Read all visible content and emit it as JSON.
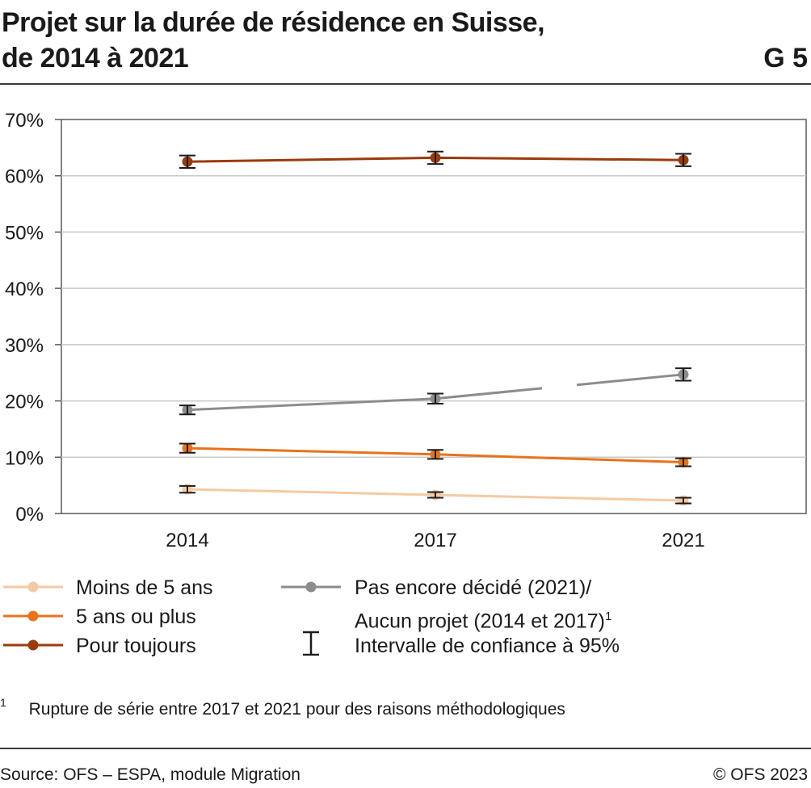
{
  "header": {
    "title_line1": "Projet sur la durée de résidence en Suisse,",
    "title_line2": "de 2014 à 2021",
    "code": "G 5"
  },
  "chart_data": {
    "type": "line",
    "title": "Projet sur la durée de résidence en Suisse, de 2014 à 2021",
    "categories": [
      "2014",
      "2017",
      "2021"
    ],
    "ylim": [
      0,
      70
    ],
    "yticks": [
      "0%",
      "10%",
      "20%",
      "30%",
      "40%",
      "50%",
      "60%",
      "70%"
    ],
    "grid": true,
    "legend_position": "bottom",
    "series": [
      {
        "name": "Moins de 5 ans",
        "color": "#f6c9a2",
        "values": [
          4.3,
          3.3,
          2.3
        ],
        "ci": [
          0.6,
          0.5,
          0.5
        ]
      },
      {
        "name": "5 ans ou plus",
        "color": "#e8731c",
        "values": [
          11.6,
          10.5,
          9.1
        ],
        "ci": [
          0.8,
          0.8,
          0.7
        ]
      },
      {
        "name": "Pour toujours",
        "color": "#9b3a0b",
        "values": [
          62.5,
          63.2,
          62.8
        ],
        "ci": [
          1.1,
          1.1,
          1.1
        ]
      },
      {
        "name": "Pas encore décidé (2021)/ Aucun projet (2014 et 2017)",
        "color": "#8c8c8c",
        "values": [
          18.4,
          20.4,
          24.7
        ],
        "ci": [
          0.8,
          0.9,
          1.1
        ],
        "break_after_index": 1
      }
    ]
  },
  "legend": {
    "item1": "Moins de 5 ans",
    "item2": "5 ans ou plus",
    "item3": "Pour toujours",
    "item4_line1": "Pas encore décidé (2021)/",
    "item4_line2": "Aucun projet (2014 et 2017)",
    "item4_sup": "1",
    "item5": "Intervalle de confiance à 95%"
  },
  "footnote": {
    "mark": "1",
    "text": "Rupture de série entre 2017 et 2021 pour des raisons méthodologiques"
  },
  "footer": {
    "source": "Source: OFS – ESPA, module Migration",
    "copyright": "© OFS 2023"
  },
  "colors": {
    "grid": "#c8c8c8",
    "axis": "#5a5a5a",
    "rule": "#3a3a3a"
  }
}
